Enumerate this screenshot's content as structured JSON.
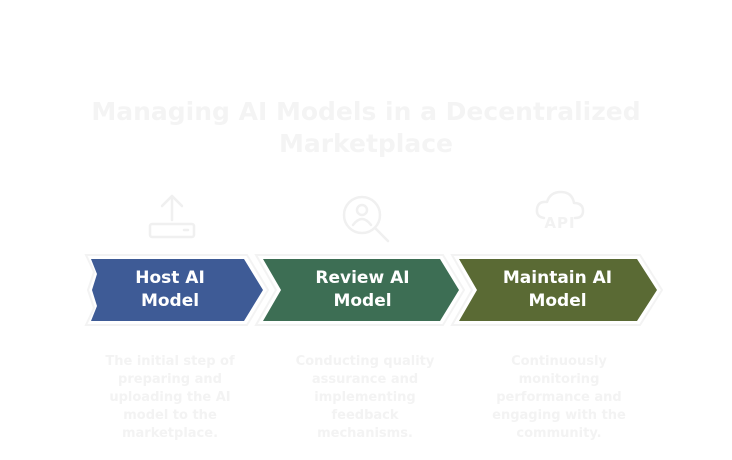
{
  "title": "Managing AI Models in a Decentralized Marketplace",
  "steps": [
    {
      "label": "Host AI Model",
      "description": "The initial step of preparing and uploading the AI model to the marketplace.",
      "icon": "upload-icon",
      "color": "#3e5b96"
    },
    {
      "label": "Review AI Model",
      "description": "Conducting quality assurance and implementing feedback mechanisms.",
      "icon": "search-person-icon",
      "color": "#3d6e54"
    },
    {
      "label": "Maintain AI Model",
      "description": "Continuously monitoring performance and engaging with the community.",
      "icon": "cloud-api-icon",
      "icon_text": "API",
      "color": "#5a6a34"
    }
  ]
}
